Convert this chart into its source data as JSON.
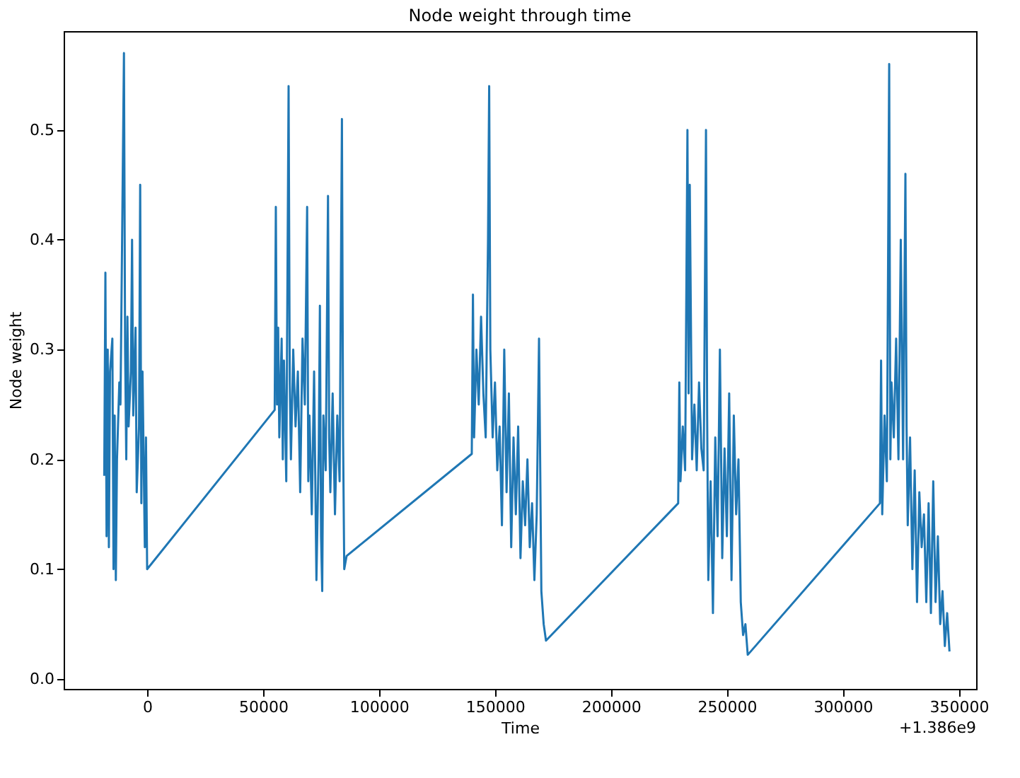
{
  "chart_data": {
    "type": "line",
    "title": "Node weight through time",
    "xlabel": "Time",
    "ylabel": "Node weight",
    "annotations": [
      "+1.386e9"
    ],
    "xlim": [
      -36000,
      357500
    ],
    "xticks": [
      0,
      50000,
      100000,
      150000,
      200000,
      250000,
      300000,
      350000
    ],
    "ylim": [
      -0.009,
      0.59
    ],
    "yticks": [
      {
        "value": 0,
        "label": "0.0"
      },
      0.1,
      0.2,
      0.3,
      0.4,
      0.5
    ],
    "grid": false,
    "marker": "none",
    "line_style": "solid",
    "x": [
      -18500,
      -18000,
      -17500,
      -17000,
      -16500,
      -16000,
      -15000,
      -14500,
      -14000,
      -13500,
      -13000,
      -12000,
      -11500,
      -10000,
      -9500,
      -9000,
      -8500,
      -8000,
      -7000,
      -6500,
      -6000,
      -5000,
      -4500,
      -3500,
      -3000,
      -2500,
      -2000,
      -1000,
      -500,
      0,
      55000,
      55500,
      56000,
      56500,
      57000,
      58000,
      58500,
      59000,
      60000,
      61000,
      61500,
      62000,
      63000,
      64000,
      65000,
      66000,
      67000,
      68000,
      69000,
      69500,
      70000,
      71000,
      72000,
      73000,
      74000,
      74500,
      75000,
      75500,
      76000,
      77000,
      78000,
      78500,
      79000,
      80000,
      81000,
      82000,
      83000,
      84000,
      84500,
      85000,
      86000,
      140000,
      140500,
      141000,
      142000,
      143000,
      144000,
      145000,
      146000,
      147000,
      147500,
      148000,
      149000,
      150000,
      151000,
      152000,
      153000,
      154000,
      155000,
      156000,
      157000,
      158000,
      159000,
      160000,
      161000,
      162000,
      163000,
      164000,
      165000,
      166000,
      167000,
      168000,
      169000,
      170000,
      171000,
      172000,
      229000,
      229500,
      230000,
      231000,
      232000,
      233000,
      233500,
      234000,
      235000,
      236000,
      237000,
      238000,
      239000,
      240000,
      241000,
      241500,
      242000,
      243000,
      244000,
      245000,
      246000,
      247000,
      248000,
      249000,
      250000,
      251000,
      252000,
      253000,
      254000,
      255000,
      256000,
      257000,
      258000,
      259000,
      316000,
      316500,
      317000,
      318000,
      319000,
      320000,
      320500,
      321000,
      322000,
      323000,
      324000,
      325000,
      326000,
      327000,
      327500,
      328000,
      329000,
      330000,
      331000,
      332000,
      333000,
      334000,
      335000,
      336000,
      337000,
      338000,
      339000,
      340000,
      341000,
      342000,
      343000,
      344000,
      345000,
      346000
    ],
    "series": [
      {
        "color": "#1f77b4",
        "values": [
          0.185,
          0.37,
          0.13,
          0.3,
          0.12,
          0.28,
          0.31,
          0.1,
          0.24,
          0.09,
          0.2,
          0.27,
          0.25,
          0.57,
          0.3,
          0.2,
          0.33,
          0.23,
          0.28,
          0.4,
          0.24,
          0.32,
          0.17,
          0.23,
          0.45,
          0.16,
          0.28,
          0.12,
          0.22,
          0.1,
          0.245,
          0.43,
          0.25,
          0.32,
          0.22,
          0.31,
          0.2,
          0.29,
          0.18,
          0.54,
          0.27,
          0.2,
          0.3,
          0.23,
          0.28,
          0.17,
          0.31,
          0.25,
          0.43,
          0.18,
          0.24,
          0.15,
          0.28,
          0.09,
          0.21,
          0.34,
          0.13,
          0.08,
          0.24,
          0.19,
          0.44,
          0.22,
          0.17,
          0.26,
          0.15,
          0.24,
          0.18,
          0.51,
          0.22,
          0.1,
          0.112,
          0.205,
          0.35,
          0.22,
          0.3,
          0.25,
          0.33,
          0.26,
          0.22,
          0.4,
          0.54,
          0.3,
          0.22,
          0.27,
          0.19,
          0.23,
          0.14,
          0.3,
          0.17,
          0.26,
          0.12,
          0.22,
          0.15,
          0.23,
          0.11,
          0.18,
          0.14,
          0.2,
          0.12,
          0.16,
          0.09,
          0.15,
          0.31,
          0.08,
          0.05,
          0.035,
          0.16,
          0.27,
          0.18,
          0.23,
          0.19,
          0.5,
          0.26,
          0.45,
          0.2,
          0.25,
          0.19,
          0.27,
          0.21,
          0.19,
          0.5,
          0.24,
          0.09,
          0.18,
          0.06,
          0.22,
          0.13,
          0.3,
          0.11,
          0.21,
          0.13,
          0.26,
          0.09,
          0.24,
          0.15,
          0.2,
          0.07,
          0.04,
          0.05,
          0.022,
          0.16,
          0.29,
          0.15,
          0.24,
          0.18,
          0.56,
          0.2,
          0.27,
          0.22,
          0.31,
          0.2,
          0.4,
          0.2,
          0.46,
          0.23,
          0.14,
          0.22,
          0.1,
          0.19,
          0.07,
          0.17,
          0.12,
          0.15,
          0.07,
          0.16,
          0.06,
          0.18,
          0.07,
          0.13,
          0.05,
          0.08,
          0.03,
          0.06,
          0.025
        ]
      }
    ]
  }
}
